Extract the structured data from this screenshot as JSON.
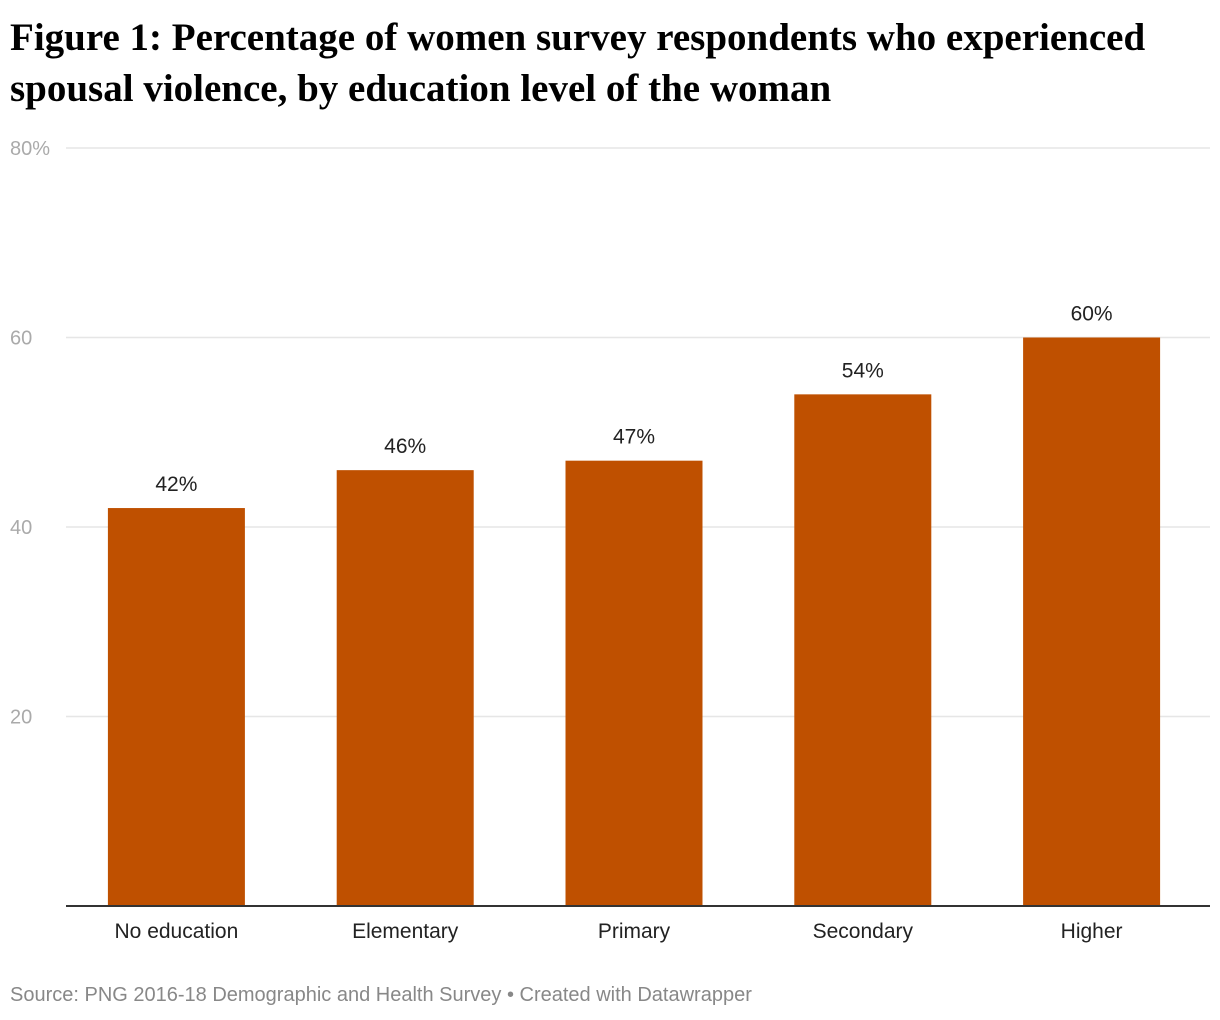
{
  "chart_data": {
    "type": "bar",
    "title": "Figure 1: Percentage of women survey respondents who experienced spousal violence, by education level of the woman",
    "categories": [
      "No education",
      "Elementary",
      "Primary",
      "Secondary",
      "Higher"
    ],
    "values": [
      42,
      46,
      47,
      54,
      60
    ],
    "value_labels": [
      "42%",
      "46%",
      "47%",
      "54%",
      "60%"
    ],
    "ylim": [
      0,
      80
    ],
    "y_ticks": [
      20,
      40,
      60,
      80
    ],
    "y_tick_labels": [
      "20",
      "40",
      "60",
      "80%"
    ],
    "xlabel": "",
    "ylabel": "",
    "grid": true,
    "bar_color": "#bf5000",
    "grid_color": "#e6e6e6",
    "axis_color": "#333333",
    "tick_label_color": "#aaaaaa",
    "value_label_color": "#222222"
  },
  "footer": {
    "source": "Source: PNG 2016-18 Demographic and Health Survey",
    "separator": " • ",
    "credit": "Created with Datawrapper"
  }
}
